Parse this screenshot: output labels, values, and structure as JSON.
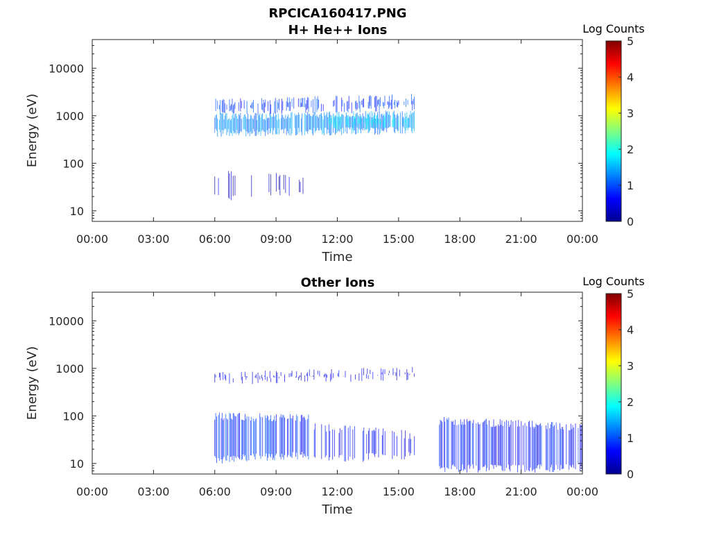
{
  "figure_title": "RPCICA160417.PNG",
  "chart_data": [
    {
      "type": "heatmap",
      "title": "H+ He++ Ions",
      "xlabel": "Time",
      "ylabel": "Energy (eV)",
      "y_scale": "log",
      "ylim": [
        6,
        40000
      ],
      "x_ticks": [
        "00:00",
        "03:00",
        "06:00",
        "09:00",
        "12:00",
        "15:00",
        "18:00",
        "21:00",
        "00:00"
      ],
      "y_ticks": [
        "10",
        "100",
        "1000",
        "10000"
      ],
      "colorbar": {
        "label": "Log Counts",
        "range": [
          0,
          5
        ],
        "ticks": [
          "0",
          "1",
          "2",
          "3",
          "4",
          "5"
        ]
      },
      "bands": [
        {
          "t_start": 6.0,
          "t_end": 15.8,
          "e_low_start": 1200,
          "e_high_start": 1900,
          "e_low_end": 1500,
          "e_high_end": 2400,
          "log_counts": 0.9,
          "density": 0.55
        },
        {
          "t_start": 6.0,
          "t_end": 15.8,
          "e_low_start": 450,
          "e_high_start": 950,
          "e_low_end": 500,
          "e_high_end": 1100,
          "log_counts": 1.3,
          "density": 0.95
        },
        {
          "t_start": 11.5,
          "t_end": 15.5,
          "e_low_start": 600,
          "e_high_start": 900,
          "e_low_end": 650,
          "e_high_end": 950,
          "log_counts": 1.8,
          "density": 0.5
        },
        {
          "t_start": 6.0,
          "t_end": 10.5,
          "e_low_start": 20,
          "e_high_start": 60,
          "e_low_end": 25,
          "e_high_end": 50,
          "log_counts": 0.3,
          "density": 0.12
        }
      ]
    },
    {
      "type": "heatmap",
      "title": "Other Ions",
      "xlabel": "Time",
      "ylabel": "Energy (eV)",
      "y_scale": "log",
      "ylim": [
        6,
        40000
      ],
      "x_ticks": [
        "00:00",
        "03:00",
        "06:00",
        "09:00",
        "12:00",
        "15:00",
        "18:00",
        "21:00",
        "00:00"
      ],
      "y_ticks": [
        "10",
        "100",
        "1000",
        "10000"
      ],
      "colorbar": {
        "label": "Log Counts",
        "range": [
          0,
          5
        ],
        "ticks": [
          "0",
          "1",
          "2",
          "3",
          "4",
          "5"
        ]
      },
      "bands": [
        {
          "t_start": 6.0,
          "t_end": 15.8,
          "e_low_start": 550,
          "e_high_start": 700,
          "e_low_end": 700,
          "e_high_end": 900,
          "log_counts": 0.5,
          "density": 0.45
        },
        {
          "t_start": 6.0,
          "t_end": 10.6,
          "e_low_start": 12,
          "e_high_start": 100,
          "e_low_end": 15,
          "e_high_end": 90,
          "log_counts": 0.8,
          "density": 0.8
        },
        {
          "t_start": 10.6,
          "t_end": 15.8,
          "e_low_start": 12,
          "e_high_start": 60,
          "e_low_end": 15,
          "e_high_end": 40,
          "log_counts": 0.6,
          "density": 0.35
        },
        {
          "t_start": 17.0,
          "t_end": 24.0,
          "e_low_start": 8,
          "e_high_start": 80,
          "e_low_end": 8,
          "e_high_end": 60,
          "log_counts": 0.7,
          "density": 0.7
        }
      ]
    }
  ]
}
